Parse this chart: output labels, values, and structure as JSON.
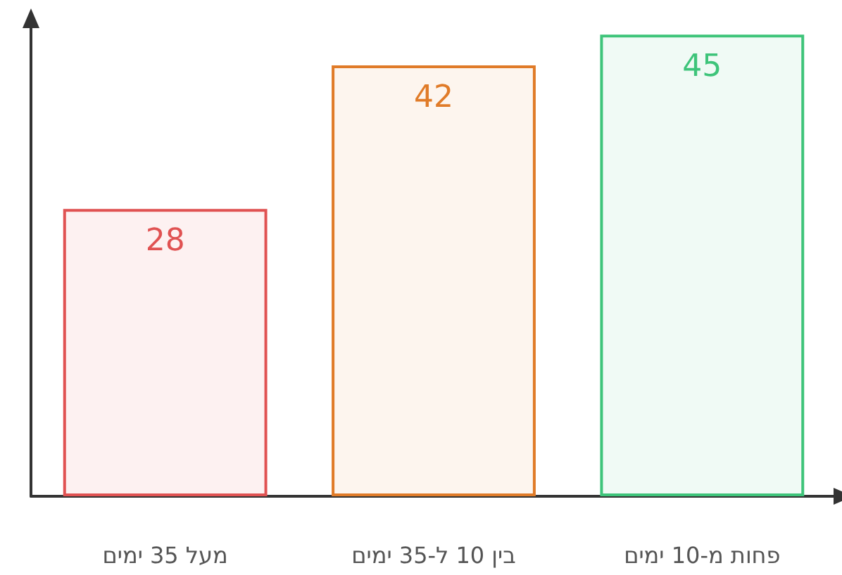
{
  "chart_data": {
    "type": "bar",
    "categories": [
      "מעל 35 ימים",
      "בין 10 ל-35 ימים",
      "פחות מ-10 ימים"
    ],
    "values": [
      28,
      42,
      45
    ],
    "colors": [
      "#e05252",
      "#e07b28",
      "#3ec47a"
    ],
    "data_labels": true,
    "tick_labels": "x"
  }
}
